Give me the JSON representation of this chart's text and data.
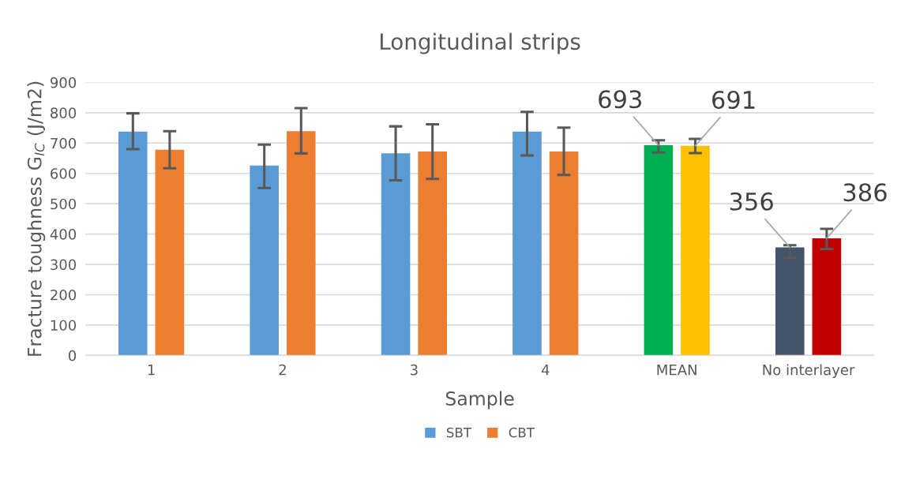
{
  "chart_data": {
    "type": "bar",
    "title": "Longitudinal strips",
    "xlabel": "Sample",
    "ylabel": "Fracture toughness G$_{IC}$ (J/m2)",
    "categories": [
      "1",
      "2",
      "3",
      "4",
      "MEAN",
      "No interlayer"
    ],
    "series": [
      {
        "name": "SBT",
        "color": "#5b9bd5",
        "colors": [
          "#5b9bd5",
          "#5b9bd5",
          "#5b9bd5",
          "#5b9bd5",
          "#00b050",
          "#44546a"
        ],
        "values": [
          738,
          626,
          666,
          738,
          693,
          356
        ],
        "errors": [
          [
            680,
            798
          ],
          [
            552,
            695
          ],
          [
            577,
            755
          ],
          [
            659,
            803
          ],
          [
            669,
            709
          ],
          [
            321,
            363
          ]
        ],
        "value_labels": [
          null,
          null,
          null,
          null,
          "693",
          "356"
        ]
      },
      {
        "name": "CBT",
        "color": "#ed7d31",
        "colors": [
          "#ed7d31",
          "#ed7d31",
          "#ed7d31",
          "#ed7d31",
          "#ffc000",
          "#c00000"
        ],
        "values": [
          678,
          739,
          672,
          672,
          691,
          386
        ],
        "errors": [
          [
            617,
            739
          ],
          [
            666,
            815
          ],
          [
            582,
            762
          ],
          [
            595,
            751
          ],
          [
            667,
            714
          ],
          [
            351,
            417
          ]
        ],
        "value_labels": [
          null,
          null,
          null,
          null,
          "691",
          "386"
        ]
      }
    ],
    "ylim": [
      0,
      900
    ],
    "yticks": [
      0,
      100,
      200,
      300,
      400,
      500,
      600,
      700,
      800,
      900
    ],
    "grid": "y",
    "legend": "bottom"
  }
}
